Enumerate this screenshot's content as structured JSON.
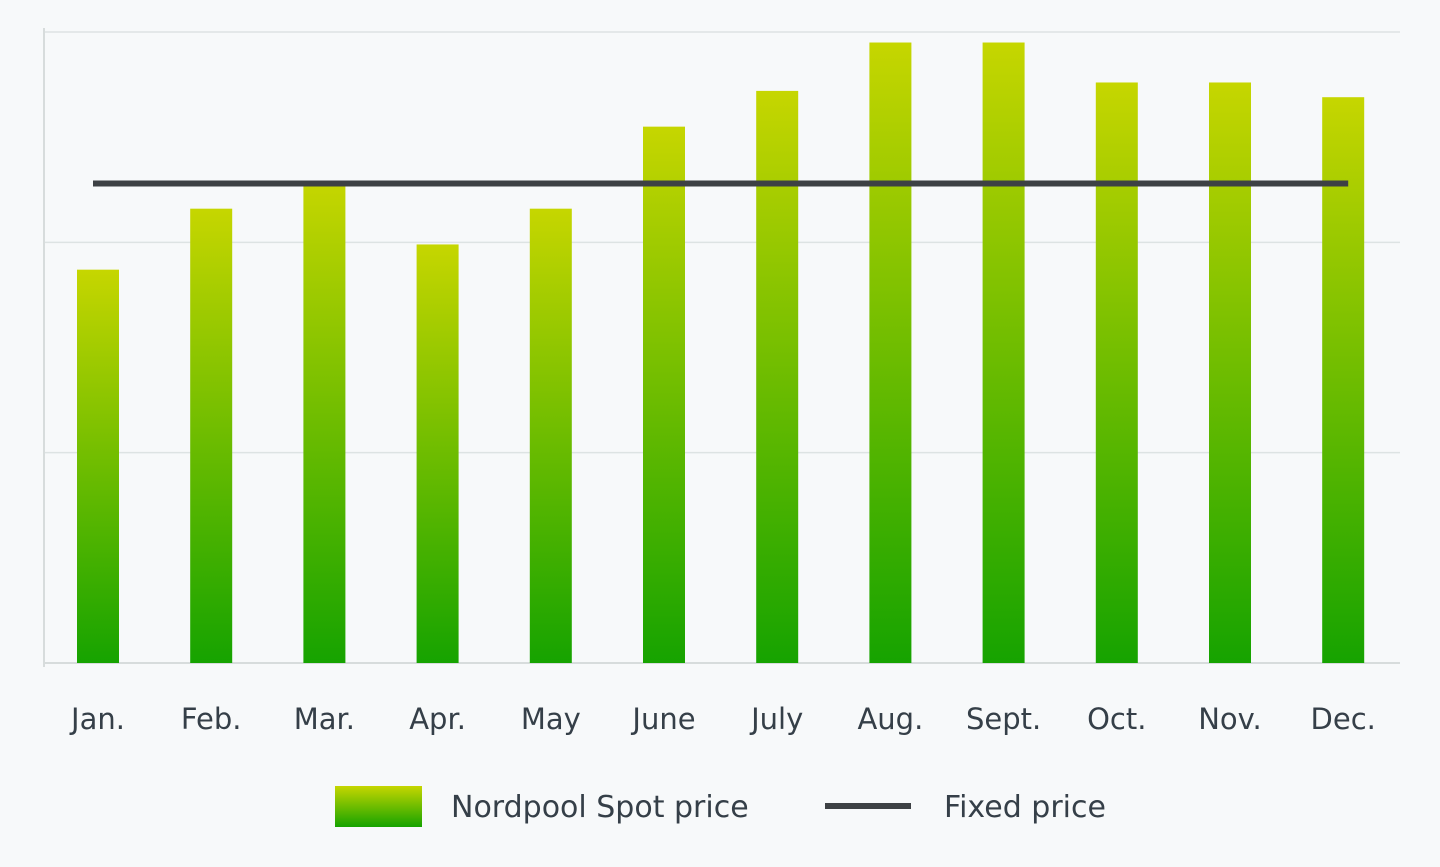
{
  "chart_data": {
    "type": "bar",
    "categories": [
      "Jan.",
      "Feb.",
      "Mar.",
      "Apr.",
      "May",
      "June",
      "July",
      "Aug.",
      "Sept.",
      "Oct.",
      "Nov.",
      "Dec."
    ],
    "series": [
      {
        "name": "Nordpool Spot price",
        "type": "bar",
        "values": [
          1.87,
          2.16,
          2.29,
          1.99,
          2.16,
          2.55,
          2.72,
          2.95,
          2.95,
          2.76,
          2.76,
          2.69
        ]
      },
      {
        "name": "Fixed price",
        "type": "line",
        "value": 2.28
      }
    ],
    "ylim": [
      0,
      3
    ],
    "y_gridlines": [
      1,
      2,
      3
    ],
    "grid": true,
    "y_tick_labels_shown": false,
    "legend_position": "bottom-center",
    "title": "",
    "xlabel": "",
    "ylabel": ""
  },
  "colors": {
    "background": "#f7f9fa",
    "bar_top": "#c6d600",
    "bar_bottom": "#16a300",
    "fixed_line": "#3d4144",
    "grid": "#dde3e3",
    "axis": "#d7dcdc",
    "text": "#353f48"
  }
}
